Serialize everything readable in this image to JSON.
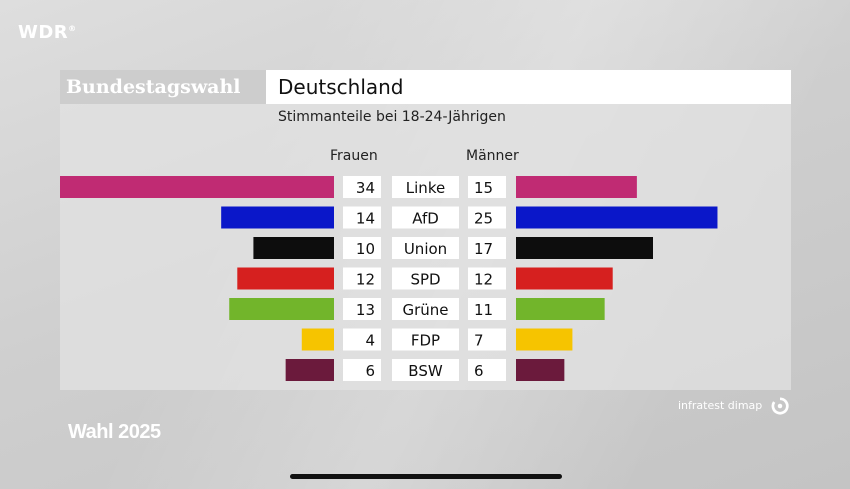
{
  "branding": {
    "station": "WDR",
    "station_mark": "®",
    "show": "Wahl 2025",
    "credit": "infratest dimap"
  },
  "header": {
    "left_title": "Bundestagswahl",
    "right_title": "Deutschland",
    "subtitle": "Stimmanteile bei 18-24-Jährigen"
  },
  "chart_data": {
    "type": "bar",
    "title": "Stimmanteile bei 18-24-Jährigen",
    "xlabel": "",
    "ylabel": "",
    "unit": "%",
    "categories": [
      "Linke",
      "AfD",
      "Union",
      "SPD",
      "Grüne",
      "FDP",
      "BSW"
    ],
    "series": [
      {
        "name": "Frauen",
        "values": [
          34,
          14,
          10,
          12,
          13,
          4,
          6
        ]
      },
      {
        "name": "Männer",
        "values": [
          15,
          25,
          17,
          12,
          11,
          7,
          6
        ]
      }
    ],
    "colors": [
      "#c02b73",
      "#0a17c9",
      "#0d0d0d",
      "#d6201f",
      "#72b52b",
      "#f6c400",
      "#6b1a3c"
    ],
    "xlim": [
      0,
      34
    ],
    "layout": "population-pyramid"
  }
}
